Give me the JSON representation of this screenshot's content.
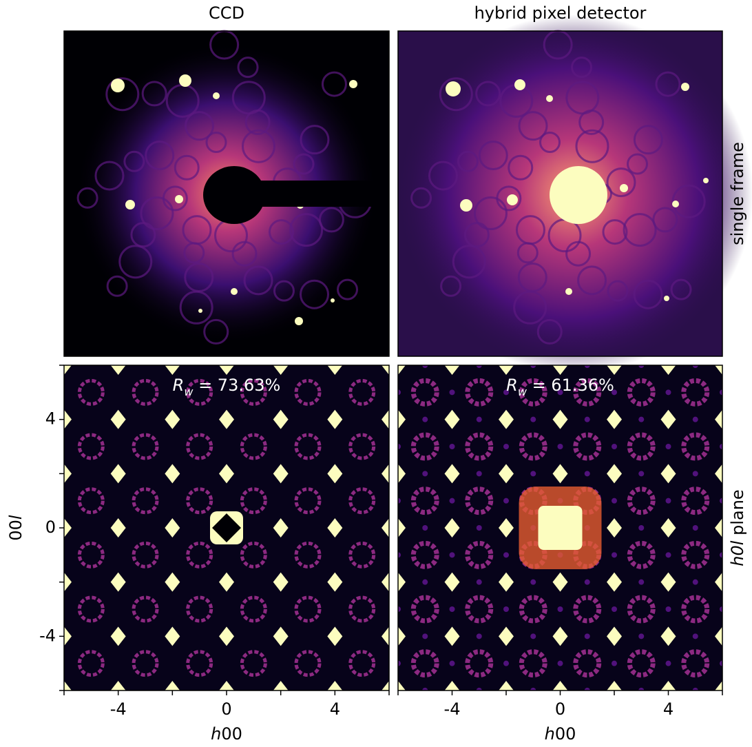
{
  "chart_data": [
    {
      "type": "image",
      "title": "CCD"
    },
    {
      "type": "image",
      "title": "hybrid pixel detector",
      "side_label": [
        {
          "text": "single frame"
        }
      ]
    },
    {
      "type": "image",
      "annotation": [
        {
          "text": "R",
          "italic": true
        },
        {
          "text": "w",
          "italic": true,
          "subscript": true
        },
        {
          "text": " = 73.63%"
        }
      ],
      "xlabel": [
        {
          "text": "h",
          "italic": true
        },
        {
          "text": "00"
        }
      ],
      "ylabel": [
        {
          "text": "00"
        },
        {
          "text": "l",
          "italic": true
        }
      ],
      "xlim": [
        -6,
        6
      ],
      "ylim": [
        -6,
        6
      ],
      "xticks": [
        -4,
        0,
        4
      ],
      "yticks": [
        -4,
        0,
        4
      ],
      "minor_ticks": [
        -6,
        -2,
        2,
        6
      ]
    },
    {
      "type": "image",
      "annotation": [
        {
          "text": "R",
          "italic": true
        },
        {
          "text": "w",
          "italic": true,
          "subscript": true
        },
        {
          "text": " = 61.36%"
        }
      ],
      "xlabel": [
        {
          "text": "h",
          "italic": true
        },
        {
          "text": "00"
        }
      ],
      "xlim": [
        -6,
        6
      ],
      "xticks": [
        -4,
        0,
        4
      ],
      "minor_ticks": [
        -6,
        -2,
        2,
        6
      ],
      "side_label": [
        {
          "text": "h0l",
          "italic": true
        },
        {
          "text": " plane"
        }
      ]
    }
  ]
}
